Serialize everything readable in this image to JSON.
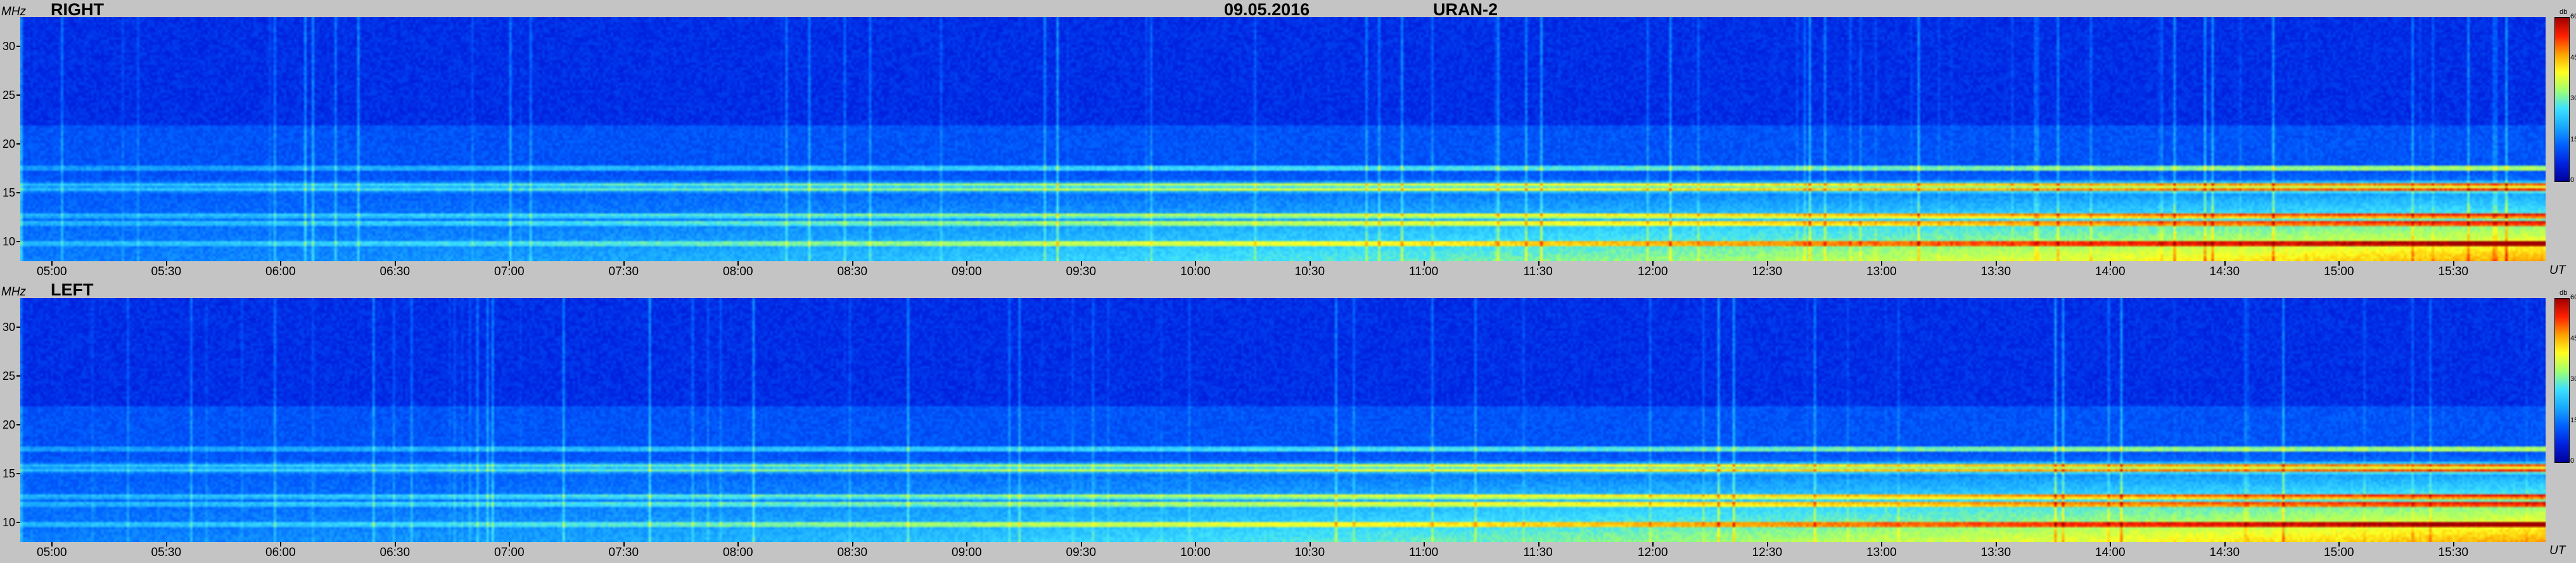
{
  "header": {
    "date": "09.05.2016",
    "instrument": "URAN-2"
  },
  "axis": {
    "y_unit": "MHz",
    "x_unit": "UT",
    "colorbar_unit": "db"
  },
  "colors": {
    "background": "#c4c4c4",
    "cmap": [
      "#00009a",
      "#0022e0",
      "#0060ff",
      "#18a8ff",
      "#3ce0ff",
      "#a0ff70",
      "#ffff20",
      "#ffa000",
      "#ff2000",
      "#a00000"
    ]
  },
  "chart_data": [
    {
      "type": "heatmap",
      "title": "RIGHT",
      "xlabel": "UT",
      "ylabel": "MHz",
      "ylim": [
        8,
        33
      ],
      "yticks": [
        "10",
        "15",
        "20",
        "25",
        "30"
      ],
      "xticks": [
        "05:00",
        "05:30",
        "06:00",
        "06:30",
        "07:00",
        "07:30",
        "08:00",
        "08:30",
        "09:00",
        "09:30",
        "10:00",
        "10:30",
        "11:00",
        "11:30",
        "12:00",
        "12:30",
        "13:00",
        "13:30",
        "14:00",
        "14:30",
        "15:00",
        "15:30"
      ],
      "colorbar": {
        "label": "db",
        "range": [
          0,
          60
        ],
        "ticks": [
          "0",
          "15",
          "30",
          "45",
          "60"
        ]
      },
      "bright_bands_mhz": [
        9.7,
        11.8,
        12.6,
        15.3,
        15.8,
        17.5
      ],
      "intensity_trend": "rises from about 10 dB at 05:00 to about 45-55 dB in the 9-16 MHz band after 12:00"
    },
    {
      "type": "heatmap",
      "title": "LEFT",
      "xlabel": "UT",
      "ylabel": "MHz",
      "ylim": [
        8,
        33
      ],
      "yticks": [
        "10",
        "15",
        "20",
        "25",
        "30"
      ],
      "xticks": [
        "05:00",
        "05:30",
        "06:00",
        "06:30",
        "07:00",
        "07:30",
        "08:00",
        "08:30",
        "09:00",
        "09:30",
        "10:00",
        "10:30",
        "11:00",
        "11:30",
        "12:00",
        "12:30",
        "13:00",
        "13:30",
        "14:00",
        "14:30",
        "15:00",
        "15:30"
      ],
      "colorbar": {
        "label": "db",
        "range": [
          0,
          60
        ],
        "ticks": [
          "0",
          "15",
          "30",
          "45",
          "60"
        ]
      },
      "bright_bands_mhz": [
        9.7,
        11.8,
        12.6,
        15.3,
        15.8,
        17.5
      ],
      "intensity_trend": "rises from about 10 dB at 05:00 to about 45-55 dB in the 9-16 MHz band after 12:00"
    }
  ]
}
